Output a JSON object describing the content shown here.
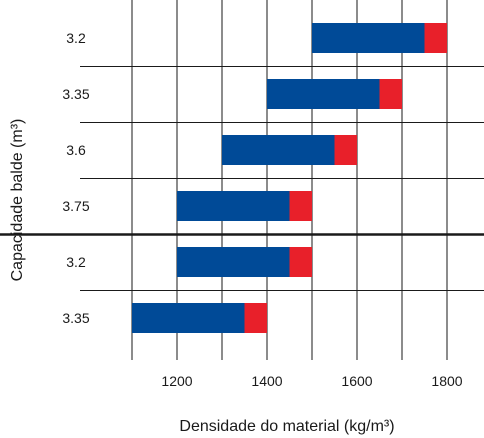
{
  "chart_data": {
    "type": "bar",
    "orientation": "horizontal-floating",
    "xlabel": "Densidade do material (kg/m³)",
    "ylabel": "Capacidade balde (m³)",
    "xlim": [
      1100,
      1850
    ],
    "xticks": [
      1200,
      1400,
      1600,
      1800
    ],
    "grid": true,
    "categories": [
      "3.2",
      "3.35",
      "3.6",
      "3.75",
      "3.2",
      "3.35"
    ],
    "group_break_after_index": 3,
    "series": [
      {
        "color": "#004a97",
        "ranges": [
          [
            1500,
            1750
          ],
          [
            1400,
            1650
          ],
          [
            1300,
            1550
          ],
          [
            1200,
            1450
          ],
          [
            1200,
            1450
          ],
          [
            1100,
            1350
          ]
        ]
      },
      {
        "color": "#e8202a",
        "ranges": [
          [
            1750,
            1800
          ],
          [
            1650,
            1700
          ],
          [
            1550,
            1600
          ],
          [
            1450,
            1500
          ],
          [
            1450,
            1500
          ],
          [
            1350,
            1400
          ]
        ]
      }
    ]
  }
}
